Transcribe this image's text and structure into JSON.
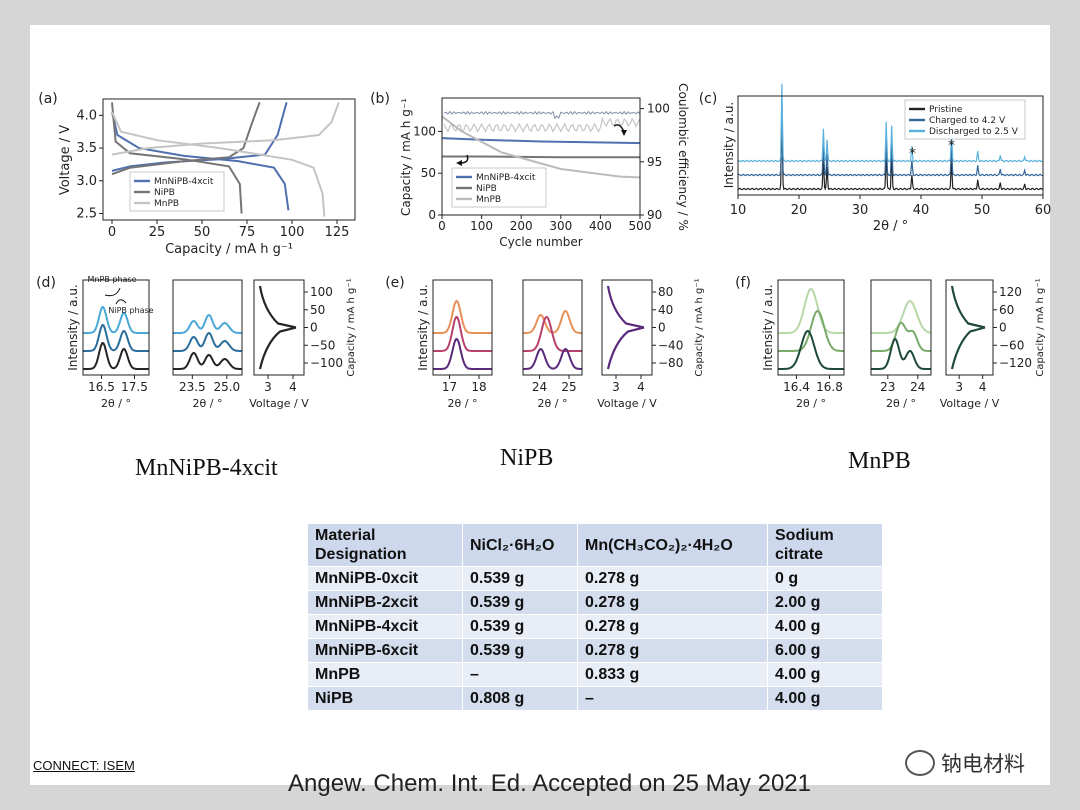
{
  "chart_data": [
    {
      "panel": "(a)",
      "type": "line",
      "xlabel": "Capacity / mA h g⁻¹",
      "ylabel": "Voltage / V",
      "xlim": [
        -5,
        135
      ],
      "ylim": [
        2.4,
        4.25
      ],
      "xticks": [
        "0",
        "25",
        "50",
        "75",
        "100",
        "125"
      ],
      "yticks": [
        "2.5",
        "3.0",
        "3.5",
        "4.0"
      ],
      "legend": [
        "MnNiPB-4xcit",
        "NiPB",
        "MnPB"
      ],
      "series": [
        {
          "name": "MnNiPB-4xcit",
          "color": "#4f6fae",
          "charge": [
            [
              0,
              3.15
            ],
            [
              10,
              3.22
            ],
            [
              30,
              3.28
            ],
            [
              60,
              3.33
            ],
            [
              85,
              3.4
            ],
            [
              92,
              3.7
            ],
            [
              97,
              4.2
            ]
          ],
          "discharge": [
            [
              0,
              4.05
            ],
            [
              3,
              3.7
            ],
            [
              15,
              3.5
            ],
            [
              40,
              3.38
            ],
            [
              70,
              3.3
            ],
            [
              90,
              3.2
            ],
            [
              96,
              2.95
            ],
            [
              98,
              2.55
            ]
          ]
        },
        {
          "name": "NiPB",
          "color": "#757575",
          "charge": [
            [
              0,
              3.1
            ],
            [
              10,
              3.2
            ],
            [
              40,
              3.3
            ],
            [
              65,
              3.36
            ],
            [
              73,
              3.5
            ],
            [
              78,
              3.9
            ],
            [
              82,
              4.2
            ]
          ],
          "discharge": [
            [
              0,
              4.2
            ],
            [
              2,
              3.6
            ],
            [
              10,
              3.42
            ],
            [
              40,
              3.33
            ],
            [
              65,
              3.22
            ],
            [
              71,
              2.95
            ],
            [
              72,
              2.5
            ]
          ]
        },
        {
          "name": "MnPB",
          "color": "#c4c4c4",
          "charge": [
            [
              0,
              3.4
            ],
            [
              20,
              3.5
            ],
            [
              50,
              3.57
            ],
            [
              90,
              3.62
            ],
            [
              115,
              3.7
            ],
            [
              122,
              3.9
            ],
            [
              126,
              4.2
            ]
          ],
          "discharge": [
            [
              0,
              4.05
            ],
            [
              5,
              3.75
            ],
            [
              25,
              3.62
            ],
            [
              60,
              3.5
            ],
            [
              100,
              3.32
            ],
            [
              112,
              3.2
            ],
            [
              117,
              2.8
            ],
            [
              118,
              2.45
            ]
          ]
        }
      ]
    },
    {
      "panel": "(b)",
      "type": "line",
      "xlabel": "Cycle number",
      "ylabel": "Capacity / mA h g⁻¹",
      "y2label": "Coulombic efficiency / %",
      "xlim": [
        0,
        500
      ],
      "ylim": [
        0,
        140
      ],
      "y2lim": [
        90,
        101
      ],
      "xticks": [
        "0",
        "100",
        "200",
        "300",
        "400",
        "500"
      ],
      "yticks": [
        "0",
        "50",
        "100"
      ],
      "y2ticks": [
        "90",
        "95",
        "100"
      ],
      "legend": [
        "MnNiPB-4xcit",
        "NiPB",
        "MnPB"
      ],
      "series": [
        {
          "name": "MnNiPB-4xcit",
          "color": "#4f6fae",
          "values": [
            [
              0,
              92
            ],
            [
              100,
              90
            ],
            [
              250,
              88
            ],
            [
              500,
              86
            ]
          ]
        },
        {
          "name": "NiPB",
          "color": "#757575",
          "values": [
            [
              0,
              70
            ],
            [
              100,
              70
            ],
            [
              300,
              69
            ],
            [
              500,
              69
            ]
          ]
        },
        {
          "name": "MnPB",
          "color": "#bbbbbb",
          "values": [
            [
              0,
              118
            ],
            [
              50,
              100
            ],
            [
              150,
              75
            ],
            [
              300,
              55
            ],
            [
              450,
              46
            ],
            [
              500,
              45
            ]
          ]
        }
      ]
    },
    {
      "panel": "(c)",
      "type": "line",
      "xlabel": "2θ / °",
      "ylabel": "Intensity / a.u.",
      "xlim": [
        10,
        60
      ],
      "xticks": [
        "10",
        "20",
        "30",
        "40",
        "50",
        "60"
      ],
      "legend": [
        "Pristine",
        "Charged to 4.2 V",
        "Discharged to 2.5 V"
      ],
      "annotations": [
        "*",
        "*"
      ],
      "series": [
        {
          "name": "Pristine",
          "color": "#222222",
          "offset": 0
        },
        {
          "name": "Charged to 4.2 V",
          "color": "#336699",
          "offset": 1
        },
        {
          "name": "Discharged to 2.5 V",
          "color": "#5ab0dd",
          "offset": 2
        }
      ],
      "peaks": [
        [
          17.2,
          1.0
        ],
        [
          24,
          0.42
        ],
        [
          24.6,
          0.28
        ],
        [
          34.3,
          0.5
        ],
        [
          35.2,
          0.45
        ],
        [
          38.5,
          0.18
        ],
        [
          45,
          0.4
        ],
        [
          49.3,
          0.12
        ],
        [
          53,
          0.08
        ],
        [
          57,
          0.06
        ]
      ]
    },
    {
      "panel": "(d)",
      "type": "line",
      "material": "MnNiPB-4xcit",
      "annotations": [
        "MnPB phase",
        "NiPB phase"
      ],
      "subplots": [
        {
          "xlabel": "2θ / °",
          "ylabel": "Intensity / a.u.",
          "xticks": [
            "16.5",
            "17.5"
          ]
        },
        {
          "xlabel": "2θ / °",
          "xticks": [
            "23.5",
            "25.0"
          ]
        },
        {
          "xlabel": "Voltage / V",
          "ylabel": "Capacity / mA h g⁻¹",
          "xticks": [
            "3",
            "4"
          ],
          "yticks": [
            "100",
            "50",
            "0",
            "−50",
            "−100"
          ]
        }
      ],
      "colors": [
        "#4aa8d8",
        "#2a6d9b",
        "#252525"
      ]
    },
    {
      "panel": "(e)",
      "type": "line",
      "material": "NiPB",
      "subplots": [
        {
          "xlabel": "2θ / °",
          "ylabel": "Intensity / a.u.",
          "xticks": [
            "17",
            "18"
          ]
        },
        {
          "xlabel": "2θ / °",
          "xticks": [
            "24",
            "25"
          ]
        },
        {
          "xlabel": "Voltage / V",
          "ylabel": "Capacity / mA h g⁻¹",
          "xticks": [
            "3",
            "4"
          ],
          "yticks": [
            "80",
            "40",
            "0",
            "−40",
            "−80"
          ]
        }
      ],
      "colors": [
        "#e8905a",
        "#b8406e",
        "#5a2a7a"
      ]
    },
    {
      "panel": "(f)",
      "type": "line",
      "material": "MnPB",
      "subplots": [
        {
          "xlabel": "2θ / °",
          "ylabel": "Intensity / a.u.",
          "xticks": [
            "16.4",
            "16.8"
          ]
        },
        {
          "xlabel": "2θ / °",
          "xticks": [
            "23",
            "24"
          ]
        },
        {
          "xlabel": "Voltage / V",
          "ylabel": "Capacity / mA h g⁻¹",
          "xticks": [
            "3",
            "4"
          ],
          "yticks": [
            "120",
            "60",
            "0",
            "−60",
            "−120"
          ]
        }
      ],
      "colors": [
        "#b8d8a8",
        "#7aaa6a",
        "#1d4a3a"
      ]
    }
  ],
  "materials": {
    "left": "MnNiPB-4xcit",
    "center": "NiPB",
    "right": "MnPB"
  },
  "table": {
    "headers": [
      "Material Designation",
      "NiCl₂·6H₂O",
      "Mn(CH₃CO₂)₂·4H₂O",
      "Sodium citrate"
    ],
    "rows": [
      [
        "MnNiPB-0xcit",
        "0.539 g",
        "0.278 g",
        "0 g"
      ],
      [
        "MnNiPB-2xcit",
        "0.539 g",
        "0.278 g",
        "2.00 g"
      ],
      [
        "MnNiPB-4xcit",
        "0.539 g",
        "0.278 g",
        "4.00 g"
      ],
      [
        "MnNiPB-6xcit",
        "0.539 g",
        "0.278 g",
        "6.00 g"
      ],
      [
        "MnPB",
        "–",
        "0.833 g",
        "4.00 g"
      ],
      [
        "NiPB",
        "0.808 g",
        "–",
        "4.00 g"
      ]
    ]
  },
  "footer": {
    "connect": "CONNECT: ISEM",
    "citation": "Angew. Chem. Int. Ed. Accepted on 25 May 2021",
    "watermark": "钠电材料"
  }
}
